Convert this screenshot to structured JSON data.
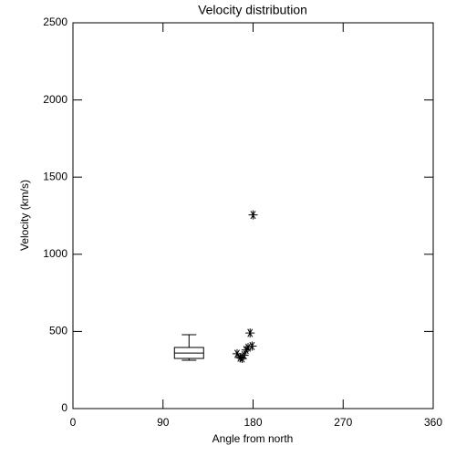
{
  "chart_data": {
    "type": "scatter",
    "title": "Velocity distribution",
    "xlabel": "Angle from north",
    "ylabel": "Velocity (km/s)",
    "x": [
      164,
      167,
      169,
      171,
      173,
      175,
      177,
      179,
      180
    ],
    "values": [
      355,
      330,
      325,
      345,
      380,
      395,
      490,
      405,
      1255
    ],
    "marker": "asterisk",
    "color": "#000000",
    "box": {
      "position": 116,
      "min": 313,
      "q1": 325,
      "median": 360,
      "q3": 396,
      "max": 479
    },
    "xlim": [
      0,
      360
    ],
    "xticks": [
      0,
      90,
      180,
      270,
      360
    ],
    "ylim": [
      0,
      2500
    ],
    "yticks": [
      0,
      500,
      1000,
      1500,
      2000,
      2500
    ]
  }
}
